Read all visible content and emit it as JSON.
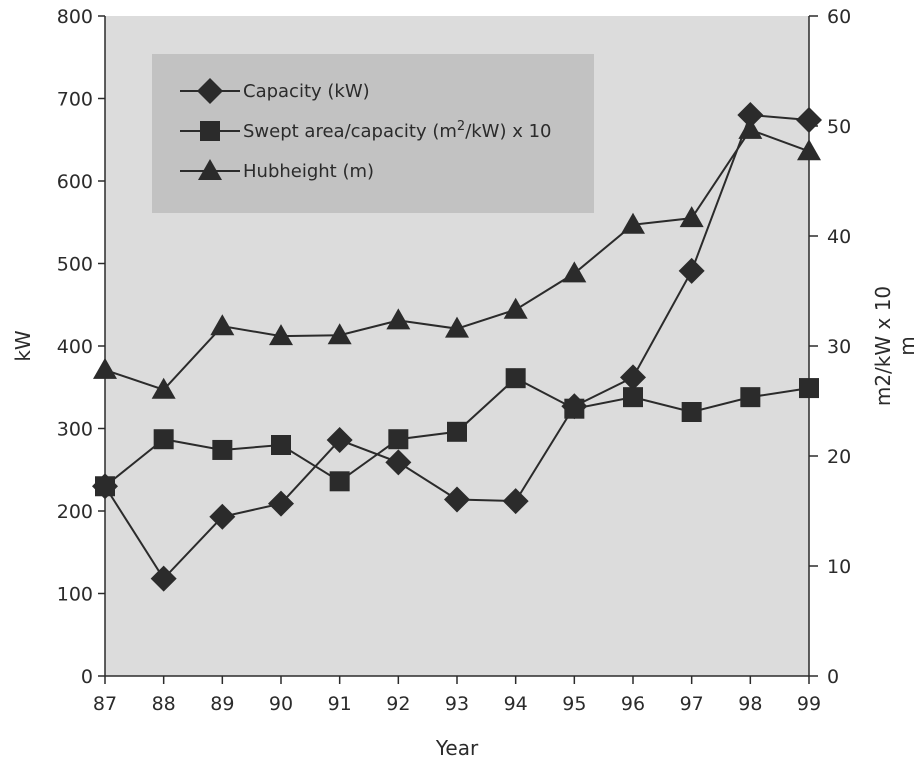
{
  "chart_data": {
    "type": "line",
    "xlabel": "Year",
    "ylabel_left": "kW",
    "ylabel_right_line1": "m2/kW x 10",
    "ylabel_right_line2": "m",
    "categories": [
      "87",
      "88",
      "89",
      "90",
      "91",
      "92",
      "93",
      "94",
      "95",
      "96",
      "97",
      "98",
      "99"
    ],
    "y_left": {
      "min": 0,
      "max": 800,
      "ticks": [
        "0",
        "100",
        "200",
        "300",
        "400",
        "500",
        "600",
        "700",
        "800"
      ]
    },
    "y_right": {
      "min": 0,
      "max": 60,
      "ticks": [
        "0",
        "10",
        "20",
        "30",
        "40",
        "50",
        "60"
      ]
    },
    "series": [
      {
        "name": "Capacity (kW)",
        "marker": "diamond",
        "axis": "left",
        "values": [
          230,
          118,
          193,
          209,
          286,
          259,
          214,
          212,
          327,
          362,
          491,
          680,
          674
        ]
      },
      {
        "name": "Swept area/capacity (m2/kW) x 10",
        "marker": "square",
        "axis": "left",
        "values": [
          230,
          287,
          274,
          280,
          236,
          287,
          296,
          361,
          324,
          338,
          320,
          338,
          349
        ]
      },
      {
        "name": "Hubheight (m)",
        "marker": "triangle",
        "axis": "left",
        "values": [
          371,
          347,
          424,
          412,
          413,
          431,
          421,
          444,
          488,
          547,
          555,
          662,
          636
        ]
      }
    ],
    "grid": false,
    "legend_position": "top-left"
  },
  "legend": {
    "item1": "Capacity (kW)",
    "item2_pre": "Swept area/capacity (m",
    "item2_sup": "2",
    "item2_post": "/kW) x 10",
    "item3": "Hubheight (m)"
  },
  "colors": {
    "plot_background": "#dcdcdc",
    "legend_background": "#c2c2c2",
    "ink": "#2b2b2b"
  }
}
